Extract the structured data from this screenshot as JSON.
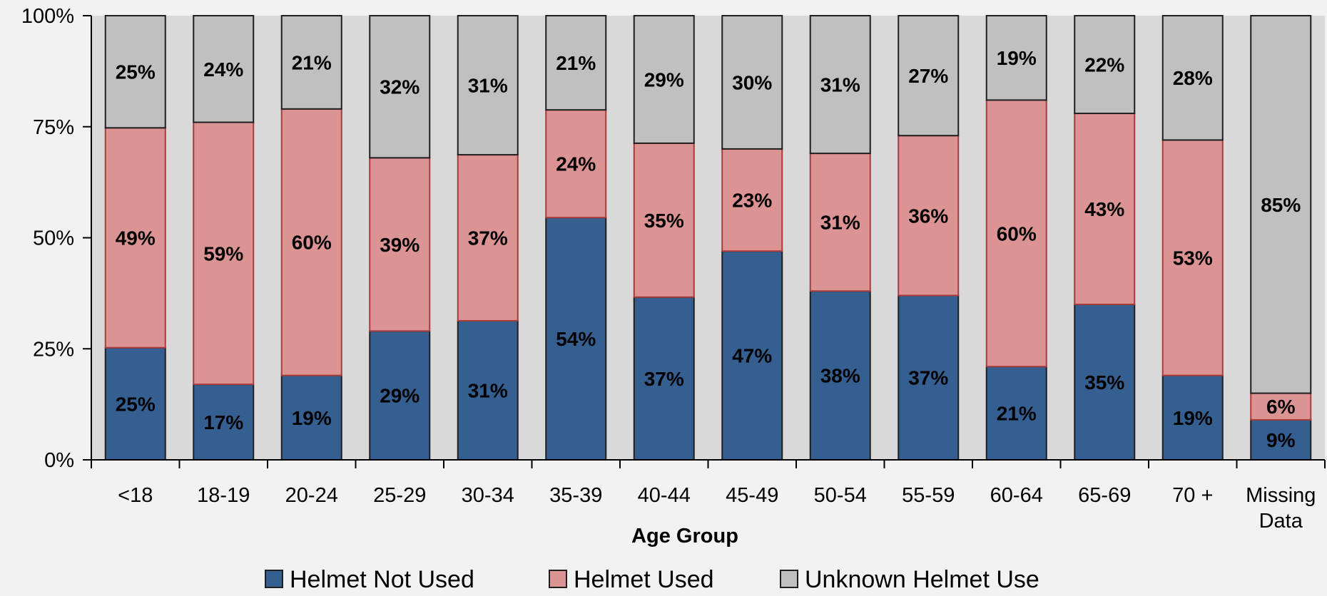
{
  "chart_data": {
    "type": "bar",
    "stacked": true,
    "percent_stacked": true,
    "categories": [
      "<18",
      "18-19",
      "20-24",
      "25-29",
      "30-34",
      "35-39",
      "40-44",
      "45-49",
      "50-54",
      "55-59",
      "60-64",
      "65-69",
      "70 +",
      "Missing Data"
    ],
    "category_lines": [
      [
        "<18"
      ],
      [
        "18-19"
      ],
      [
        "20-24"
      ],
      [
        "25-29"
      ],
      [
        "30-34"
      ],
      [
        "35-39"
      ],
      [
        "40-44"
      ],
      [
        "45-49"
      ],
      [
        "50-54"
      ],
      [
        "55-59"
      ],
      [
        "60-64"
      ],
      [
        "65-69"
      ],
      [
        "70 +"
      ],
      [
        "Missing",
        "Data"
      ]
    ],
    "series": [
      {
        "name": "Helmet Not Used",
        "color": "#355f91",
        "values": [
          25,
          17,
          19,
          29,
          31,
          54,
          37,
          47,
          38,
          37,
          21,
          35,
          19,
          9
        ]
      },
      {
        "name": "Helmet Used",
        "color": "#dc9393",
        "values": [
          49,
          59,
          60,
          39,
          37,
          24,
          35,
          23,
          31,
          36,
          60,
          43,
          53,
          6
        ]
      },
      {
        "name": "Unknown Helmet Use",
        "color": "#c0c0c0",
        "values": [
          25,
          24,
          21,
          32,
          31,
          21,
          29,
          30,
          31,
          27,
          19,
          22,
          28,
          85
        ]
      }
    ],
    "data_labels": [
      [
        "25%",
        "17%",
        "19%",
        "29%",
        "31%",
        "54%",
        "37%",
        "47%",
        "38%",
        "37%",
        "21%",
        "35%",
        "19%",
        "9%"
      ],
      [
        "49%",
        "59%",
        "60%",
        "39%",
        "37%",
        "24%",
        "35%",
        "23%",
        "31%",
        "36%",
        "60%",
        "43%",
        "53%",
        "6%"
      ],
      [
        "25%",
        "24%",
        "21%",
        "32%",
        "31%",
        "21%",
        "29%",
        "30%",
        "31%",
        "27%",
        "19%",
        "22%",
        "28%",
        "85%"
      ]
    ],
    "title": "",
    "xlabel": "Age Group",
    "ylabel": "",
    "ylim": [
      0,
      100
    ],
    "yticks": [
      0,
      25,
      50,
      75,
      100
    ],
    "ytick_labels": [
      "0%",
      "25%",
      "50%",
      "75%",
      "100%"
    ],
    "plot_background": "#d9d9d9",
    "legend_position": "bottom",
    "grid": false
  }
}
